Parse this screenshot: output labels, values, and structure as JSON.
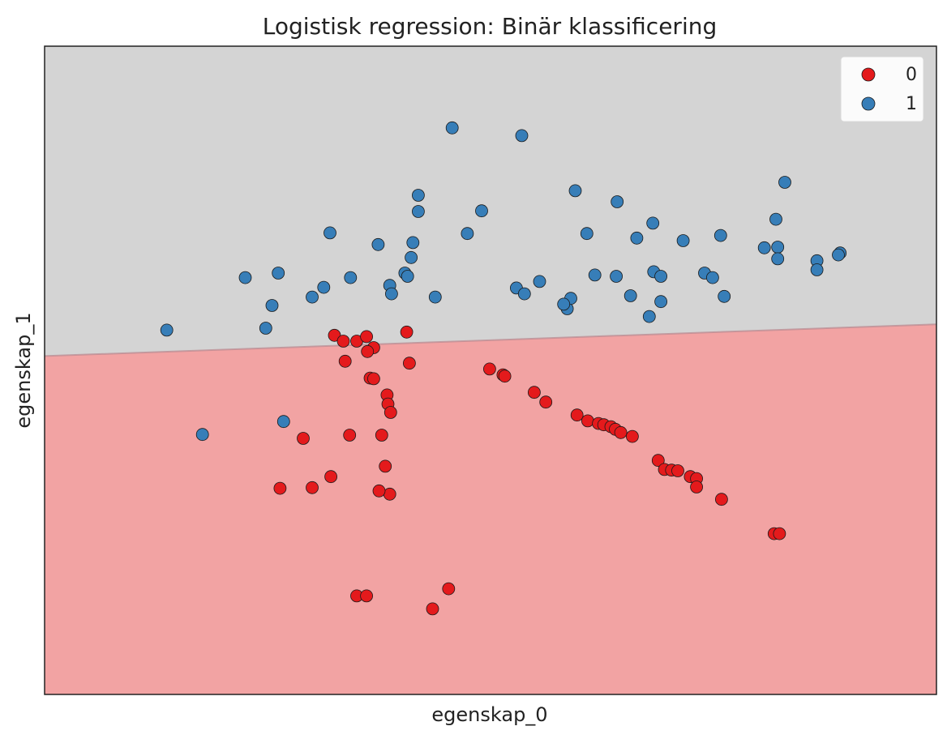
{
  "chart_data": {
    "type": "scatter",
    "title": "Logistisk regression: Binär klassificering",
    "xlabel": "egenskap_0",
    "ylabel": "egenskap_1",
    "xlim": [
      0,
      1000
    ],
    "ylim": [
      0,
      1000
    ],
    "ticks_visible": false,
    "grid": false,
    "legend": {
      "position": "top-right",
      "entries": [
        "0",
        "1"
      ]
    },
    "decision_boundary": {
      "x": [
        0,
        1000
      ],
      "y": [
        522,
        571
      ]
    },
    "regions": [
      {
        "class": "0",
        "side": "below",
        "color": "#F2A3A3"
      },
      {
        "class": "1",
        "side": "above",
        "color": "#D4D4D4"
      }
    ],
    "series": [
      {
        "name": "0",
        "color": "#E41A1C",
        "points": [
          [
            325,
            554
          ],
          [
            335,
            545
          ],
          [
            350,
            545
          ],
          [
            361,
            552
          ],
          [
            369,
            535
          ],
          [
            362,
            529
          ],
          [
            406,
            559
          ],
          [
            337,
            514
          ],
          [
            409,
            511
          ],
          [
            365,
            488
          ],
          [
            369,
            487
          ],
          [
            384,
            462
          ],
          [
            385,
            448
          ],
          [
            388,
            435
          ],
          [
            378,
            400
          ],
          [
            382,
            352
          ],
          [
            387,
            309
          ],
          [
            375,
            314
          ],
          [
            300,
            319
          ],
          [
            321,
            336
          ],
          [
            342,
            400
          ],
          [
            264,
            318
          ],
          [
            290,
            395
          ],
          [
            350,
            152
          ],
          [
            361,
            152
          ],
          [
            453,
            163
          ],
          [
            435,
            132
          ],
          [
            499,
            502
          ],
          [
            514,
            493
          ],
          [
            516,
            491
          ],
          [
            549,
            466
          ],
          [
            562,
            451
          ],
          [
            597,
            431
          ],
          [
            609,
            422
          ],
          [
            621,
            418
          ],
          [
            627,
            416
          ],
          [
            635,
            413
          ],
          [
            640,
            409
          ],
          [
            646,
            404
          ],
          [
            659,
            398
          ],
          [
            688,
            361
          ],
          [
            695,
            347
          ],
          [
            703,
            346
          ],
          [
            710,
            345
          ],
          [
            724,
            336
          ],
          [
            731,
            333
          ],
          [
            731,
            320
          ],
          [
            759,
            301
          ],
          [
            818,
            248
          ],
          [
            824,
            248
          ]
        ]
      },
      {
        "name": "1",
        "color": "#377EB8",
        "points": [
          [
            457,
            874
          ],
          [
            535,
            862
          ],
          [
            595,
            777
          ],
          [
            642,
            760
          ],
          [
            830,
            790
          ],
          [
            419,
            770
          ],
          [
            419,
            745
          ],
          [
            490,
            746
          ],
          [
            474,
            711
          ],
          [
            320,
            712
          ],
          [
            374,
            694
          ],
          [
            413,
            697
          ],
          [
            411,
            674
          ],
          [
            820,
            733
          ],
          [
            682,
            727
          ],
          [
            608,
            711
          ],
          [
            664,
            704
          ],
          [
            716,
            700
          ],
          [
            758,
            708
          ],
          [
            807,
            689
          ],
          [
            822,
            690
          ],
          [
            866,
            669
          ],
          [
            892,
            681
          ],
          [
            822,
            672
          ],
          [
            866,
            655
          ],
          [
            890,
            678
          ],
          [
            617,
            647
          ],
          [
            683,
            652
          ],
          [
            691,
            645
          ],
          [
            641,
            645
          ],
          [
            691,
            606
          ],
          [
            657,
            615
          ],
          [
            555,
            637
          ],
          [
            529,
            627
          ],
          [
            538,
            618
          ],
          [
            586,
            595
          ],
          [
            590,
            611
          ],
          [
            582,
            602
          ],
          [
            678,
            583
          ],
          [
            740,
            650
          ],
          [
            749,
            643
          ],
          [
            762,
            614
          ],
          [
            262,
            650
          ],
          [
            225,
            643
          ],
          [
            343,
            643
          ],
          [
            387,
            631
          ],
          [
            313,
            628
          ],
          [
            404,
            650
          ],
          [
            407,
            645
          ],
          [
            438,
            613
          ],
          [
            389,
            618
          ],
          [
            300,
            613
          ],
          [
            255,
            600
          ],
          [
            248,
            565
          ],
          [
            137,
            562
          ],
          [
            177,
            401
          ],
          [
            268,
            421
          ]
        ]
      }
    ]
  }
}
